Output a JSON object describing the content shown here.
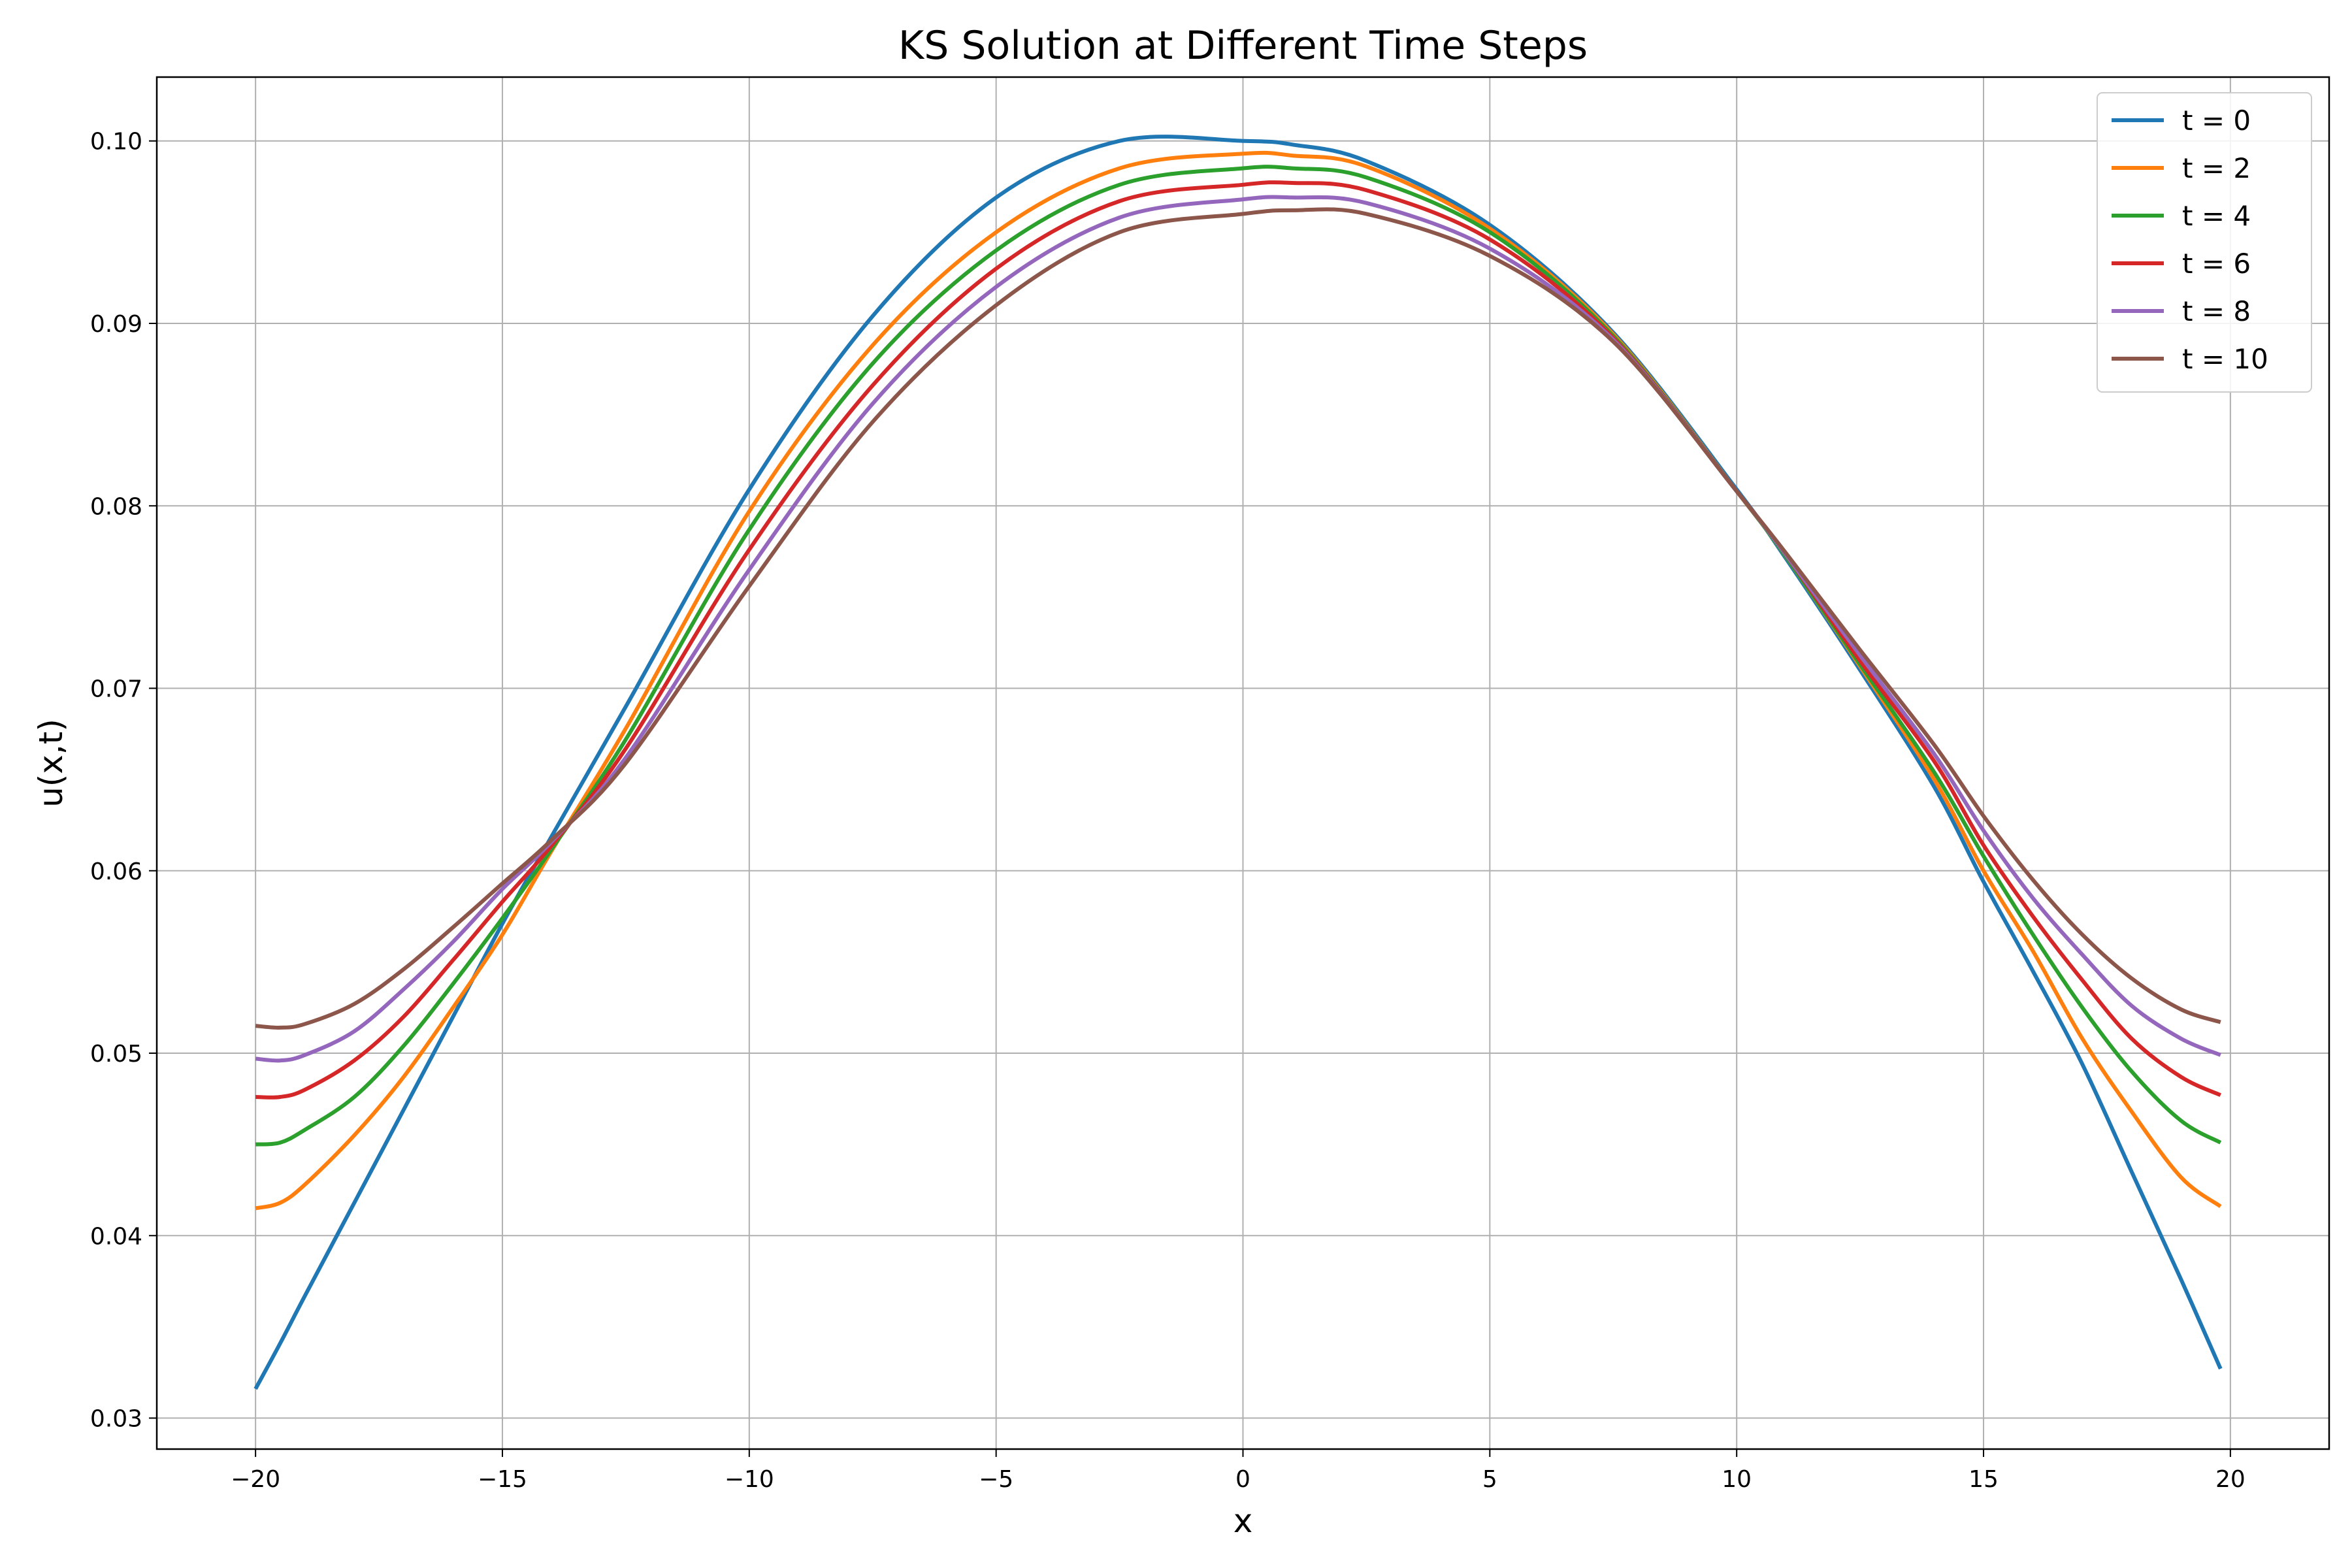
{
  "chart_data": {
    "type": "line",
    "title": "KS Solution at Different Time Steps",
    "xlabel": "x",
    "ylabel": "u(x,t)",
    "xlim": [
      -22,
      22
    ],
    "ylim": [
      0.0283,
      0.1035
    ],
    "xticks": [
      -20,
      -15,
      -10,
      -5,
      0,
      5,
      10,
      15,
      20
    ],
    "xtick_labels": [
      "−20",
      "−15",
      "−10",
      "−5",
      "0",
      "5",
      "10",
      "15",
      "20"
    ],
    "yticks": [
      0.03,
      0.04,
      0.05,
      0.06,
      0.07,
      0.08,
      0.09,
      0.1
    ],
    "ytick_labels": [
      "0.03",
      "0.04",
      "0.05",
      "0.06",
      "0.07",
      "0.08",
      "0.09",
      "0.10"
    ],
    "grid": true,
    "legend_position": "top-right",
    "x": [
      -20,
      -19.5,
      -19,
      -18,
      -17,
      -16,
      -15,
      -14,
      -12.5,
      -10,
      -7.5,
      -5,
      -2.5,
      0,
      1,
      2.5,
      5,
      7.5,
      10,
      11,
      12.5,
      14,
      15,
      16,
      17,
      18,
      19,
      19.8
    ],
    "series": [
      {
        "name": "t = 0",
        "color": "#1f77b4",
        "values": [
          0.0316,
          0.0341,
          0.0367,
          0.0418,
          0.0469,
          0.052,
          0.0571,
          0.0619,
          0.069,
          0.0809,
          0.0904,
          0.0969,
          0.1,
          0.1,
          0.0998,
          0.0989,
          0.0954,
          0.0895,
          0.0809,
          0.0771,
          0.071,
          0.0646,
          0.0594,
          0.0545,
          0.0494,
          0.0435,
          0.0376,
          0.0327
        ]
      },
      {
        "name": "t = 2",
        "color": "#ff7f0e",
        "values": [
          0.0415,
          0.0418,
          0.0428,
          0.0455,
          0.0487,
          0.0525,
          0.0565,
          0.0611,
          0.0678,
          0.0797,
          0.0888,
          0.095,
          0.0985,
          0.0993,
          0.0992,
          0.0986,
          0.0952,
          0.0894,
          0.0808,
          0.0772,
          0.0712,
          0.065,
          0.06,
          0.0556,
          0.0508,
          0.0468,
          0.0432,
          0.0416
        ]
      },
      {
        "name": "t = 4",
        "color": "#2ca02c",
        "values": [
          0.045,
          0.0451,
          0.0458,
          0.0476,
          0.0504,
          0.0538,
          0.0574,
          0.0612,
          0.0672,
          0.0787,
          0.0878,
          0.094,
          0.0976,
          0.0985,
          0.0985,
          0.098,
          0.095,
          0.0893,
          0.0808,
          0.0772,
          0.0713,
          0.0654,
          0.0608,
          0.0565,
          0.0525,
          0.049,
          0.0463,
          0.0451
        ]
      },
      {
        "name": "t = 6",
        "color": "#d62728",
        "values": [
          0.0476,
          0.0476,
          0.048,
          0.0496,
          0.052,
          0.0551,
          0.0583,
          0.0614,
          0.0667,
          0.0776,
          0.0866,
          0.093,
          0.0967,
          0.0976,
          0.0977,
          0.0973,
          0.0946,
          0.0892,
          0.0808,
          0.0773,
          0.0715,
          0.066,
          0.0614,
          0.0575,
          0.054,
          0.0508,
          0.0487,
          0.0477
        ]
      },
      {
        "name": "t = 8",
        "color": "#9467bd",
        "values": [
          0.0497,
          0.0496,
          0.0499,
          0.0512,
          0.0535,
          0.0561,
          0.059,
          0.0616,
          0.0662,
          0.0765,
          0.0856,
          0.092,
          0.0958,
          0.0968,
          0.0969,
          0.0966,
          0.0941,
          0.0891,
          0.0808,
          0.0773,
          0.0718,
          0.0664,
          0.0622,
          0.0585,
          0.0554,
          0.0526,
          0.0508,
          0.0499
        ]
      },
      {
        "name": "t = 10",
        "color": "#8c564b",
        "values": [
          0.0515,
          0.0514,
          0.0516,
          0.0527,
          0.0546,
          0.0569,
          0.0593,
          0.0617,
          0.0659,
          0.0756,
          0.0846,
          0.091,
          0.095,
          0.096,
          0.0962,
          0.096,
          0.0937,
          0.089,
          0.0808,
          0.0774,
          0.0721,
          0.0669,
          0.063,
          0.0595,
          0.0565,
          0.0541,
          0.0524,
          0.0517
        ]
      }
    ]
  }
}
